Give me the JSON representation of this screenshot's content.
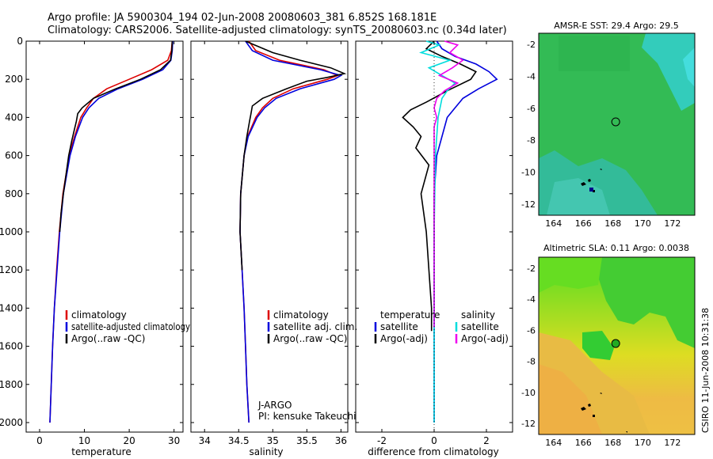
{
  "header": {
    "title_line1": "Argo profile: JA 5900304_194 02-Jun-2008 20080603_381 6.852S 168.181E",
    "title_line2": "Climatology: CARS2006. Satellite-adjusted climatology: synTS_20080603.nc (0.34d later)"
  },
  "side_label": "CSIRO 11-Jun-2008 10:31:38",
  "credit": {
    "line1": "J-ARGO",
    "line2": "PI: kensuke Takeuchi"
  },
  "colors": {
    "climatology": "#dd0000",
    "satellite": "#0000dd",
    "argo": "#000000",
    "sat_sal": "#00dddd",
    "argo_sal": "#ee00ee",
    "sst_water": "#22bb55",
    "sst_warm": "#33cccc",
    "sla_green": "#33cc33",
    "sla_yellow": "#dddd22",
    "sla_orange": "#eeaa33"
  },
  "chart_data": [
    {
      "type": "line",
      "title": "",
      "xlabel": "temperature",
      "ylabel": "",
      "xlim": [
        -3,
        32
      ],
      "ylim": [
        2050,
        0
      ],
      "xticks": [
        0,
        10,
        20,
        30
      ],
      "yticks": [
        0,
        200,
        400,
        600,
        800,
        1000,
        1200,
        1400,
        1600,
        1800,
        2000
      ],
      "legend": [
        "climatology",
        "satellite-adjusted climatology",
        "Argo(..raw -QC)"
      ],
      "series": [
        {
          "name": "climatology",
          "color": "#dd0000",
          "depth": [
            0,
            50,
            100,
            150,
            200,
            250,
            300,
            350,
            400,
            500,
            600,
            800,
            1000,
            1200,
            1400,
            1600,
            1800,
            2000
          ],
          "values": [
            29.6,
            29.4,
            28.6,
            25,
            20,
            15,
            12,
            10.5,
            9.2,
            7.8,
            6.6,
            5.2,
            4.4,
            3.8,
            3.3,
            2.9,
            2.6,
            2.3
          ]
        },
        {
          "name": "satellite-adjusted climatology",
          "color": "#0000dd",
          "depth": [
            0,
            50,
            100,
            150,
            200,
            250,
            300,
            350,
            400,
            500,
            600,
            800,
            1000,
            1200,
            1400,
            1600,
            1800,
            2000
          ],
          "values": [
            29.7,
            29.6,
            29.3,
            27.5,
            23,
            17.5,
            13.2,
            11,
            9.6,
            8,
            6.8,
            5.3,
            4.5,
            3.9,
            3.3,
            2.9,
            2.6,
            2.3
          ]
        },
        {
          "name": "Argo(..raw -QC)",
          "color": "#000000",
          "depth": [
            0,
            50,
            100,
            150,
            200,
            250,
            300,
            350,
            380,
            420,
            460,
            520,
            600,
            800,
            900,
            1000
          ],
          "values": [
            29.6,
            29.5,
            29.2,
            27,
            22.5,
            17,
            12,
            9.5,
            8.5,
            8.2,
            7.8,
            7.2,
            6.5,
            5.3,
            4.8,
            4.5
          ]
        }
      ]
    },
    {
      "type": "line",
      "xlabel": "salinity",
      "xlim": [
        33.8,
        36.1
      ],
      "ylim": [
        2050,
        0
      ],
      "xticks": [
        34,
        34.5,
        35,
        35.5,
        36
      ],
      "legend": [
        "climatology",
        "satellite adj. clim.",
        "Argo(..raw -QC)"
      ],
      "series": [
        {
          "name": "climatology",
          "color": "#dd0000",
          "depth": [
            0,
            50,
            100,
            150,
            180,
            200,
            250,
            300,
            350,
            400,
            500,
            600,
            800,
            1000,
            1200,
            1400,
            1600,
            1800,
            2000
          ],
          "values": [
            34.65,
            34.75,
            35.1,
            35.75,
            35.95,
            35.8,
            35.3,
            35,
            34.85,
            34.75,
            34.63,
            34.58,
            34.53,
            34.52,
            34.55,
            34.58,
            34.6,
            34.62,
            34.65
          ]
        },
        {
          "name": "satellite adj. clim.",
          "color": "#0000dd",
          "depth": [
            0,
            50,
            100,
            150,
            180,
            200,
            250,
            300,
            350,
            400,
            500,
            600,
            800,
            1000,
            1200,
            1400,
            1600,
            1800,
            2000
          ],
          "values": [
            34.6,
            34.7,
            35.0,
            35.7,
            36.0,
            35.9,
            35.4,
            35.05,
            34.88,
            34.77,
            34.64,
            34.58,
            34.53,
            34.52,
            34.55,
            34.58,
            34.6,
            34.62,
            34.65
          ]
        },
        {
          "name": "Argo(..raw -QC)",
          "color": "#000000",
          "depth": [
            0,
            30,
            60,
            100,
            140,
            170,
            190,
            210,
            250,
            300,
            340,
            380,
            420,
            500,
            600,
            800,
            1000,
            1200
          ],
          "values": [
            34.6,
            34.8,
            35.0,
            35.4,
            35.85,
            36.05,
            35.8,
            35.5,
            35.2,
            34.85,
            34.7,
            34.68,
            34.66,
            34.62,
            34.58,
            34.53,
            34.52,
            34.55
          ]
        }
      ]
    },
    {
      "type": "line",
      "xlabel": "difference from climatology",
      "xlim": [
        -3,
        3
      ],
      "ylim": [
        2050,
        0
      ],
      "xticks": [
        -2,
        0,
        2
      ],
      "legend_temperature": {
        "title": "temperature",
        "items": [
          "satellite",
          "Argo(-adj)"
        ]
      },
      "legend_salinity": {
        "title": "salinity",
        "items": [
          "satellite",
          "Argo(-adj)"
        ]
      },
      "series": [
        {
          "name": "temperature satellite",
          "color": "#0000dd",
          "depth": [
            0,
            40,
            80,
            120,
            160,
            200,
            250,
            300,
            350,
            400,
            500,
            600,
            800,
            1000,
            1500,
            2000
          ],
          "values": [
            0.1,
            0.3,
            0.8,
            1.6,
            2.1,
            2.4,
            1.7,
            1.1,
            0.8,
            0.5,
            0.3,
            0.1,
            0,
            0,
            0,
            0
          ]
        },
        {
          "name": "temperature Argo(-adj)",
          "color": "#000000",
          "depth": [
            0,
            40,
            80,
            120,
            160,
            200,
            260,
            320,
            360,
            400,
            450,
            500,
            560,
            650,
            800,
            1000,
            1200,
            1400,
            1520
          ],
          "values": [
            0,
            -0.3,
            0.3,
            1.0,
            1.6,
            1.4,
            0.5,
            -0.3,
            -0.9,
            -1.2,
            -0.8,
            -0.5,
            -0.7,
            -0.2,
            -0.5,
            -0.3,
            -0.2,
            -0.1,
            -0.1
          ]
        },
        {
          "name": "salinity satellite",
          "color": "#00dddd",
          "depth": [
            0,
            20,
            60,
            100,
            140,
            180,
            220,
            260,
            300,
            400,
            600,
            1000,
            1500,
            2000
          ],
          "values": [
            -0.3,
            0.2,
            -0.5,
            0.6,
            -0.2,
            0.3,
            0.8,
            0.5,
            0.3,
            0.15,
            0.05,
            0,
            0,
            0
          ]
        },
        {
          "name": "salinity Argo(-adj)",
          "color": "#ee00ee",
          "depth": [
            0,
            20,
            60,
            100,
            140,
            180,
            220,
            260,
            300,
            350,
            400,
            450,
            600,
            1000,
            1500
          ],
          "values": [
            0.4,
            0.9,
            0.6,
            1.1,
            0.7,
            0.2,
            0.9,
            0.4,
            0.1,
            0,
            0.1,
            0,
            0,
            0,
            0
          ]
        }
      ]
    },
    {
      "type": "heatmap",
      "title": "AMSR-E SST: 29.4 Argo: 29.5",
      "xlim": [
        163,
        173.5
      ],
      "ylim": [
        -12.7,
        -1.3
      ],
      "xticks": [
        164,
        166,
        168,
        170,
        172
      ],
      "yticks": [
        -2,
        -4,
        -6,
        -8,
        -10,
        -12
      ],
      "marker": {
        "lon": 168.18,
        "lat": -6.85
      }
    },
    {
      "type": "heatmap",
      "title": "Altimetric SLA: 0.11 Argo: 0.0038",
      "xlim": [
        163,
        173.5
      ],
      "ylim": [
        -12.7,
        -1.3
      ],
      "xticks": [
        164,
        166,
        168,
        170,
        172
      ],
      "yticks": [
        -2,
        -4,
        -6,
        -8,
        -10,
        -12
      ],
      "marker": {
        "lon": 168.18,
        "lat": -6.85
      }
    }
  ]
}
